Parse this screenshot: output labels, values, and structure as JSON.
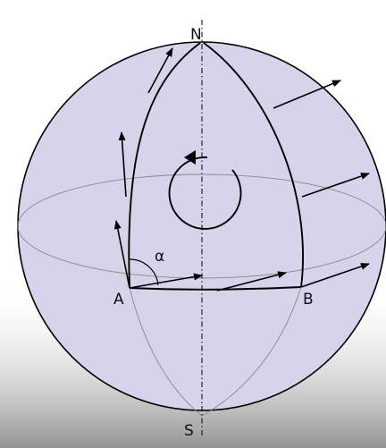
{
  "labels": {
    "north": "N",
    "south": "S",
    "point_a": "A",
    "point_b": "B",
    "angle": "α"
  },
  "colors": {
    "sphere_fill": "#d6d3ea",
    "stroke": "#000000",
    "background_fade": "#8a8a8a",
    "hidden_line": "#8a8a8a"
  }
}
